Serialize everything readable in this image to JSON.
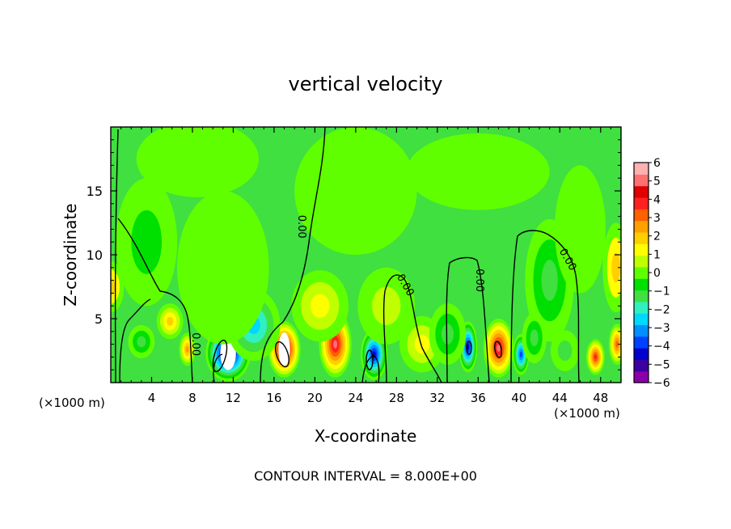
{
  "chart_data": {
    "type": "heatmap",
    "title": "vertical velocity",
    "xlabel": "X-coordinate",
    "ylabel": "Z-coordinate",
    "x_unit_left": "(×1000 m)",
    "x_unit_right": "(×1000 m)",
    "footer": "CONTOUR INTERVAL = 8.000E+00",
    "xlim": [
      0,
      50
    ],
    "ylim": [
      0,
      20
    ],
    "x_ticks": [
      4,
      8,
      12,
      16,
      20,
      24,
      28,
      32,
      36,
      40,
      44,
      48
    ],
    "y_ticks": [
      5,
      10,
      15
    ],
    "colorbar": {
      "ticks": [
        "6",
        "5",
        "4",
        "3",
        "2",
        "1",
        "0",
        "−1",
        "−2",
        "−3",
        "−4",
        "−5",
        "−6"
      ],
      "range": [
        -6,
        6
      ],
      "colors": [
        "#8a00a8",
        "#3c00a0",
        "#0000cc",
        "#0040ff",
        "#0090ff",
        "#00d8ff",
        "#30f0c0",
        "#40e040",
        "#00e000",
        "#60ff00",
        "#c0ff00",
        "#ffff00",
        "#ffd000",
        "#ffa000",
        "#ff6000",
        "#ff2020",
        "#e00000",
        "#ff7070",
        "#ffb0b0"
      ]
    },
    "contour_labels": [
      {
        "text": "0.00",
        "x": 18.4,
        "y": 12.2,
        "angle": 90
      },
      {
        "text": "0.00",
        "x": 8.0,
        "y": 3.0,
        "angle": 90
      },
      {
        "text": "0.00",
        "x": 28.6,
        "y": 7.5,
        "angle": 60
      },
      {
        "text": "0.00",
        "x": 35.8,
        "y": 8.0,
        "angle": 90
      },
      {
        "text": "0.00",
        "x": 44.5,
        "y": 9.5,
        "angle": 60
      }
    ],
    "cells": [
      {
        "x": 11.5,
        "z": 2.3,
        "w": -6.0,
        "rx": 2.2,
        "rz": 2.2
      },
      {
        "x": 17.0,
        "z": 2.6,
        "w": 5.6,
        "rx": 1.6,
        "rz": 2.2
      },
      {
        "x": 22.0,
        "z": 3.0,
        "w": 5.0,
        "rx": 1.6,
        "rz": 2.6
      },
      {
        "x": 25.8,
        "z": 2.2,
        "w": -5.0,
        "rx": 1.3,
        "rz": 2.0
      },
      {
        "x": 35.0,
        "z": 2.8,
        "w": -4.8,
        "rx": 0.9,
        "rz": 2.0
      },
      {
        "x": 38.0,
        "z": 2.7,
        "w": 5.0,
        "rx": 1.5,
        "rz": 2.3
      },
      {
        "x": 40.2,
        "z": 2.2,
        "w": -4.2,
        "rx": 0.8,
        "rz": 1.6
      },
      {
        "x": 47.5,
        "z": 2.0,
        "w": 4.2,
        "rx": 0.9,
        "rz": 1.4
      },
      {
        "x": 49.6,
        "z": 3.0,
        "w": 3.5,
        "rx": 0.8,
        "rz": 1.6
      },
      {
        "x": 5.8,
        "z": 4.8,
        "w": 2.2,
        "rx": 1.3,
        "rz": 1.4
      },
      {
        "x": 7.5,
        "z": 2.6,
        "w": 2.8,
        "rx": 0.8,
        "rz": 1.3
      },
      {
        "x": 3.0,
        "z": 3.2,
        "w": -1.6,
        "rx": 1.3,
        "rz": 1.3
      },
      {
        "x": 14.0,
        "z": 4.5,
        "w": -2.5,
        "rx": 2.6,
        "rz": 2.8
      },
      {
        "x": 11.0,
        "z": 9.0,
        "w": -0.8,
        "rx": 4.5,
        "rz": 6.0
      },
      {
        "x": 3.5,
        "z": 11.0,
        "w": -1.0,
        "rx": 3.0,
        "rz": 5.0
      },
      {
        "x": 20.5,
        "z": 6.0,
        "w": 1.5,
        "rx": 2.8,
        "rz": 2.8
      },
      {
        "x": 0.0,
        "z": 7.5,
        "w": 2.0,
        "rx": 1.3,
        "rz": 2.0
      },
      {
        "x": 30.5,
        "z": 3.0,
        "w": 1.5,
        "rx": 2.2,
        "rz": 2.2
      },
      {
        "x": 33.0,
        "z": 3.8,
        "w": -1.5,
        "rx": 1.8,
        "rz": 2.4
      },
      {
        "x": 43.0,
        "z": 8.0,
        "w": -1.5,
        "rx": 2.4,
        "rz": 4.8
      },
      {
        "x": 46.0,
        "z": 12.0,
        "w": -0.7,
        "rx": 2.5,
        "rz": 5.0
      },
      {
        "x": 49.5,
        "z": 9.0,
        "w": 1.8,
        "rx": 1.3,
        "rz": 3.5
      },
      {
        "x": 27.0,
        "z": 6.0,
        "w": 0.9,
        "rx": 2.8,
        "rz": 3.0
      },
      {
        "x": 41.5,
        "z": 3.5,
        "w": -1.6,
        "rx": 1.2,
        "rz": 2.0
      },
      {
        "x": 44.5,
        "z": 2.5,
        "w": -1.2,
        "rx": 1.4,
        "rz": 1.6
      },
      {
        "x": 24.0,
        "z": 15.0,
        "w": 0.5,
        "rx": 6.0,
        "rz": 5.0
      },
      {
        "x": 36.0,
        "z": 16.5,
        "w": -0.3,
        "rx": 7.0,
        "rz": 3.0
      },
      {
        "x": 8.5,
        "z": 17.5,
        "w": 0.3,
        "rx": 6.0,
        "rz": 3.0
      }
    ]
  }
}
